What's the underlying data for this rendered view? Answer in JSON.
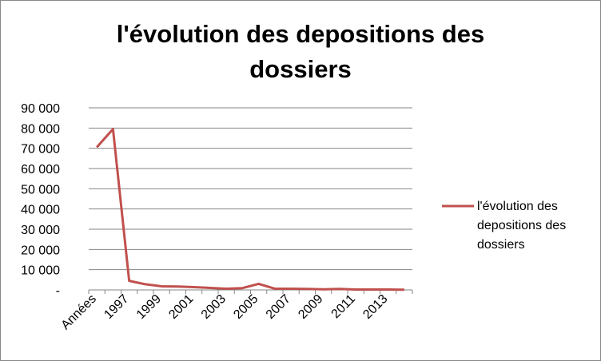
{
  "chart_data": {
    "type": "line",
    "title": "l'évolution des depositions des dossiers",
    "categories": [
      "Années",
      null,
      "1997",
      null,
      "1999",
      null,
      "2001",
      null,
      "2003",
      null,
      "2005",
      null,
      "2007",
      null,
      "2009",
      null,
      "2011",
      null,
      "2013",
      null
    ],
    "series": [
      {
        "name": "l'évolution des depositions des dossiers",
        "color": "#c0504d",
        "values": [
          70500,
          79500,
          4500,
          2800,
          1800,
          1700,
          1400,
          1000,
          600,
          900,
          3000,
          600,
          600,
          500,
          300,
          500,
          200,
          200,
          200,
          100
        ]
      }
    ],
    "ylim": [
      0,
      90000
    ],
    "yticks": [
      {
        "value": 0,
        "label": "-"
      },
      {
        "value": 10000,
        "label": "10 000"
      },
      {
        "value": 20000,
        "label": "20 000"
      },
      {
        "value": 30000,
        "label": "30 000"
      },
      {
        "value": 40000,
        "label": "40 000"
      },
      {
        "value": 50000,
        "label": "50 000"
      },
      {
        "value": 60000,
        "label": "60 000"
      },
      {
        "value": 70000,
        "label": "70 000"
      },
      {
        "value": 80000,
        "label": "80 000"
      },
      {
        "value": 90000,
        "label": "90 000"
      }
    ],
    "grid": true,
    "legend": "right"
  }
}
